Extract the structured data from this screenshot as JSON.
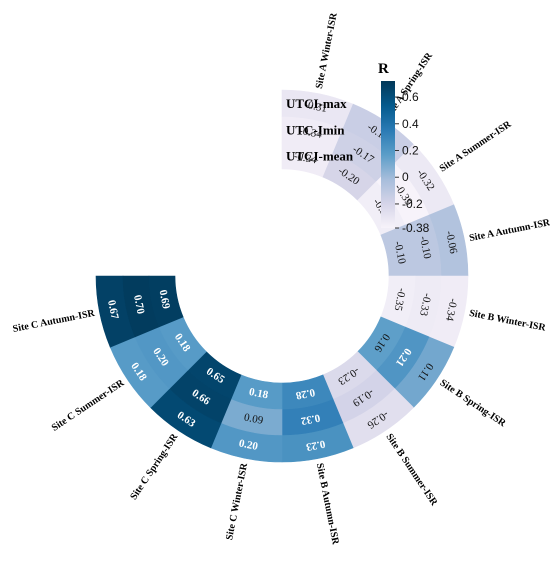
{
  "chart_data": {
    "type": "heatmap",
    "layout": "circular",
    "categories": [
      "Site A Winter-ISR",
      "Site A Spring-ISR",
      "Site A Summer-ISR",
      "Site A Autumn-ISR",
      "Site B Winter-ISR",
      "Site B Spring-ISR",
      "Site B Summer-ISR",
      "Site B Autumn-ISR",
      "Site C Winter-ISR",
      "Site C Spring-ISR",
      "Site C Summer-ISR",
      "Site C Autumn-ISR"
    ],
    "series": [
      {
        "name": "UTCI-max",
        "values": [
          -0.31,
          -0.15,
          -0.32,
          -0.06,
          -0.34,
          0.11,
          -0.26,
          0.23,
          0.2,
          0.63,
          0.18,
          0.67
        ]
      },
      {
        "name": "UTC-Imin",
        "values": [
          -0.34,
          -0.17,
          -0.39,
          -0.1,
          -0.33,
          0.21,
          -0.19,
          0.32,
          0.09,
          0.66,
          0.2,
          0.7
        ]
      },
      {
        "name": "UTCI-mean",
        "values": [
          -0.34,
          -0.2,
          -0.35,
          -0.1,
          -0.35,
          0.16,
          -0.23,
          0.28,
          0.18,
          0.65,
          0.18,
          0.69
        ]
      }
    ],
    "colorbar": {
      "title": "R",
      "range": [
        -0.38,
        0.72
      ],
      "ticks": [
        "0.6",
        "0.4",
        "0.2",
        "0",
        "-0.2",
        "-0.38"
      ],
      "tick_values": [
        0.6,
        0.4,
        0.2,
        0,
        -0.2,
        -0.38
      ],
      "colors": [
        "#f7f3fa",
        "#d5d4e8",
        "#a6bddb",
        "#5a9dc8",
        "#2a7ab4",
        "#045a8d",
        "#023858"
      ]
    },
    "grid": false
  }
}
